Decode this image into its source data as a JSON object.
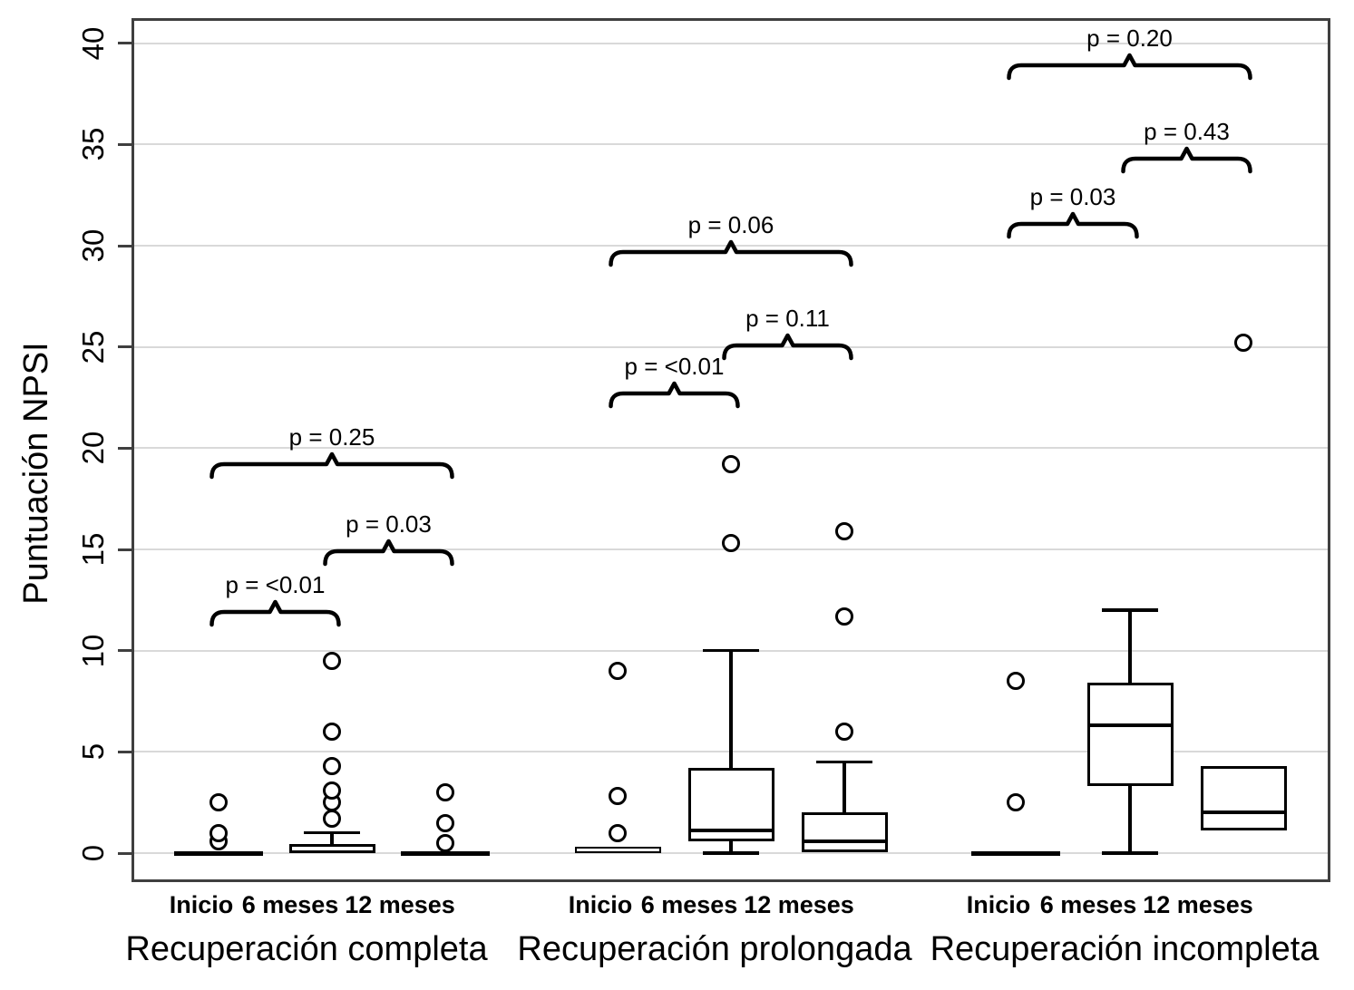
{
  "chart_data": {
    "type": "boxplot",
    "title": "",
    "ylabel": "Puntuación NPSI",
    "xlabel": "",
    "ylim": [
      0,
      40
    ],
    "yticks": [
      0,
      5,
      10,
      15,
      20,
      25,
      30,
      35,
      40
    ],
    "grid": "horizontal",
    "legend": "none",
    "timepoints": [
      "Inicio",
      "6 meses",
      "12 meses"
    ],
    "groups": [
      {
        "label": "Recuperación completa",
        "boxes": [
          {
            "timepoint": "Inicio",
            "whisker_low": 0,
            "q1": 0,
            "median": 0,
            "q3": 0,
            "whisker_high": 0,
            "outliers": [
              0.6,
              1.0,
              2.5
            ]
          },
          {
            "timepoint": "6 meses",
            "whisker_low": 0,
            "q1": 0,
            "median": 0.1,
            "q3": 0.45,
            "whisker_high": 1.0,
            "outliers": [
              1.7,
              2.5,
              3.1,
              4.3,
              6.0,
              9.5
            ]
          },
          {
            "timepoint": "12 meses",
            "whisker_low": 0,
            "q1": 0,
            "median": 0,
            "q3": 0,
            "whisker_high": 0,
            "outliers": [
              0.5,
              1.5,
              3.0
            ]
          }
        ],
        "comparisons": [
          {
            "label": "p = <0.01",
            "from": 0,
            "to": 1,
            "bracket_y": 11.9
          },
          {
            "label": "p = 0.03",
            "from": 1,
            "to": 2,
            "bracket_y": 14.9
          },
          {
            "label": "p = 0.25",
            "from": 0,
            "to": 2,
            "bracket_y": 19.2
          }
        ]
      },
      {
        "label": "Recuperación prolongada",
        "boxes": [
          {
            "timepoint": "Inicio",
            "whisker_low": 0,
            "q1": 0,
            "median": 0.15,
            "q3": 0.3,
            "whisker_high": 0.3,
            "outliers": [
              1.0,
              2.8,
              9.0
            ]
          },
          {
            "timepoint": "6 meses",
            "whisker_low": 0,
            "q1": 0.6,
            "median": 1.1,
            "q3": 4.2,
            "whisker_high": 10.0,
            "outliers": [
              15.3,
              19.2
            ]
          },
          {
            "timepoint": "12 meses",
            "whisker_low": 0.05,
            "q1": 0.05,
            "median": 0.6,
            "q3": 2.0,
            "whisker_high": 4.5,
            "outliers": [
              6.0,
              11.7,
              15.9
            ]
          }
        ],
        "comparisons": [
          {
            "label": "p = <0.01",
            "from": 0,
            "to": 1,
            "bracket_y": 22.7
          },
          {
            "label": "p = 0.11",
            "from": 1,
            "to": 2,
            "bracket_y": 25.1
          },
          {
            "label": "p = 0.06",
            "from": 0,
            "to": 2,
            "bracket_y": 29.7
          }
        ]
      },
      {
        "label": "Recuperación incompleta",
        "boxes": [
          {
            "timepoint": "Inicio",
            "whisker_low": 0,
            "q1": 0,
            "median": 0,
            "q3": 0,
            "whisker_high": 0,
            "outliers": [
              2.5,
              8.5
            ]
          },
          {
            "timepoint": "6 meses",
            "whisker_low": 0,
            "q1": 3.3,
            "median": 6.3,
            "q3": 8.4,
            "whisker_high": 12.0,
            "outliers": []
          },
          {
            "timepoint": "12 meses",
            "whisker_low": 1.1,
            "q1": 1.1,
            "median": 2.0,
            "q3": 4.3,
            "whisker_high": 4.3,
            "outliers": [
              25.2
            ]
          }
        ],
        "comparisons": [
          {
            "label": "p = 0.03",
            "from": 0,
            "to": 1,
            "bracket_y": 31.1
          },
          {
            "label": "p = 0.43",
            "from": 1,
            "to": 2,
            "bracket_y": 34.3
          },
          {
            "label": "p = 0.20",
            "from": 0,
            "to": 2,
            "bracket_y": 38.9
          }
        ]
      }
    ],
    "colors": {
      "box_stroke": "#000000",
      "box_fill": "#ffffff",
      "gridline": "#d9d9d9",
      "axis": "#3f3f3f",
      "text": "#000000",
      "background": "#ffffff"
    }
  }
}
